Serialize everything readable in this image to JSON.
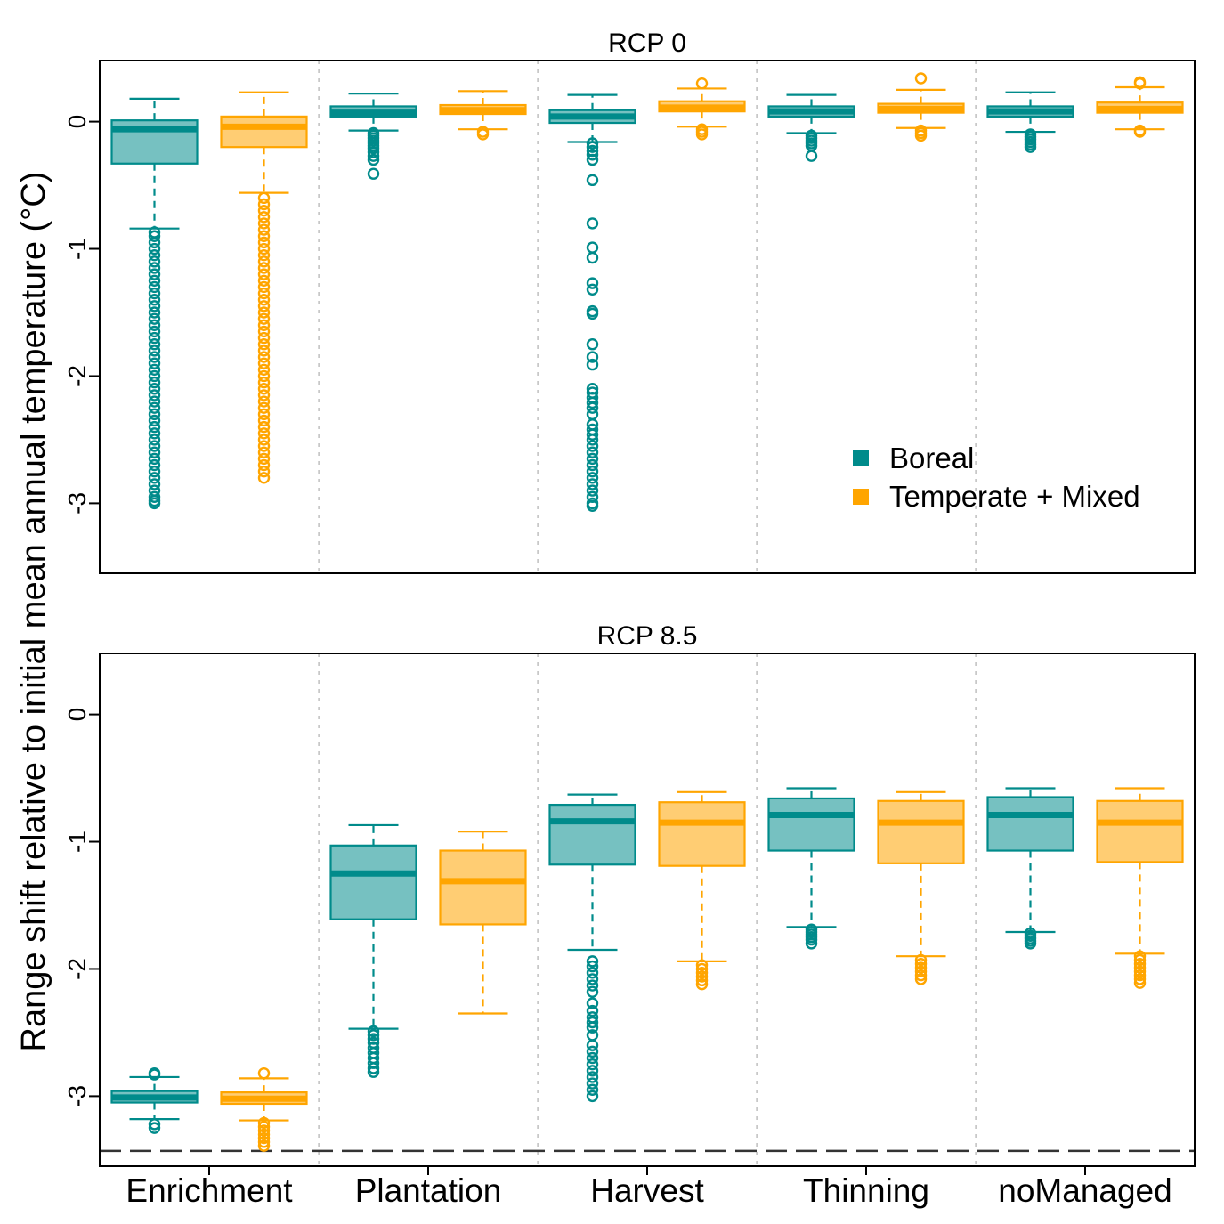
{
  "figure": {
    "ylabel": "Range shift relative to initial mean annual temperature (°C)",
    "categories": [
      "Enrichment",
      "Plantation",
      "Harvest",
      "Thinning",
      "noManaged"
    ],
    "legend": {
      "position": "bottom-right of top panel",
      "entries": [
        {
          "name": "Boreal",
          "color": "#008B8B",
          "fill": "#76C1C1"
        },
        {
          "name": "Temperate + Mixed",
          "color": "#FFA500",
          "fill": "#FFCD73"
        }
      ]
    }
  },
  "chart_data": [
    {
      "type": "box",
      "title": "RCP 0",
      "ylabel": "Range shift relative to initial mean annual temperature (°C)",
      "ylim": [
        -3.55,
        0.48
      ],
      "yticks": [
        "0",
        "-1",
        "-2",
        "-3"
      ],
      "tick_values": [
        0,
        -1,
        -2,
        -3
      ],
      "categories": [
        "Enrichment",
        "Plantation",
        "Harvest",
        "Thinning",
        "noManaged"
      ],
      "series": [
        {
          "name": "Boreal",
          "boxes": [
            {
              "whisker_low": -0.84,
              "q1": -0.33,
              "median": -0.06,
              "q3": 0.01,
              "whisker_high": 0.18,
              "outliers": [
                -0.87,
                -0.9,
                -0.95,
                -1.0,
                -1.05,
                -1.1,
                -1.15,
                -1.2,
                -1.25,
                -1.3,
                -1.35,
                -1.4,
                -1.45,
                -1.5,
                -1.55,
                -1.6,
                -1.65,
                -1.7,
                -1.75,
                -1.8,
                -1.85,
                -1.9,
                -1.95,
                -2.0,
                -2.05,
                -2.1,
                -2.15,
                -2.2,
                -2.25,
                -2.3,
                -2.35,
                -2.4,
                -2.45,
                -2.5,
                -2.55,
                -2.6,
                -2.65,
                -2.7,
                -2.75,
                -2.8,
                -2.85,
                -2.9,
                -2.95,
                -2.98,
                -3.0
              ]
            },
            {
              "whisker_low": -0.07,
              "q1": 0.04,
              "median": 0.07,
              "q3": 0.12,
              "whisker_high": 0.22,
              "outliers": [
                -0.09,
                -0.11,
                -0.13,
                -0.15,
                -0.17,
                -0.19,
                -0.21,
                -0.24,
                -0.27,
                -0.3,
                -0.41
              ]
            },
            {
              "whisker_low": -0.16,
              "q1": -0.01,
              "median": 0.04,
              "q3": 0.09,
              "whisker_high": 0.21,
              "outliers": [
                -0.17,
                -0.2,
                -0.23,
                -0.26,
                -0.3,
                -0.46,
                -0.8,
                -0.99,
                -1.07,
                -1.27,
                -1.32,
                -1.49,
                -1.51,
                -1.75,
                -1.85,
                -1.91,
                -2.1,
                -2.13,
                -2.17,
                -2.21,
                -2.25,
                -2.3,
                -2.38,
                -2.42,
                -2.46,
                -2.5,
                -2.55,
                -2.6,
                -2.65,
                -2.7,
                -2.75,
                -2.8,
                -2.85,
                -2.9,
                -2.95,
                -3.0,
                -3.02
              ]
            },
            {
              "whisker_low": -0.09,
              "q1": 0.04,
              "median": 0.08,
              "q3": 0.12,
              "whisker_high": 0.21,
              "outliers": [
                -0.11,
                -0.13,
                -0.15,
                -0.17,
                -0.19,
                -0.27
              ]
            },
            {
              "whisker_low": -0.08,
              "q1": 0.04,
              "median": 0.08,
              "q3": 0.12,
              "whisker_high": 0.23,
              "outliers": [
                -0.1,
                -0.12,
                -0.14,
                -0.16,
                -0.18,
                -0.2
              ]
            }
          ]
        },
        {
          "name": "Temperate + Mixed",
          "boxes": [
            {
              "whisker_low": -0.56,
              "q1": -0.2,
              "median": -0.04,
              "q3": 0.04,
              "whisker_high": 0.23,
              "outliers": [
                -0.6,
                -0.65,
                -0.7,
                -0.75,
                -0.8,
                -0.85,
                -0.9,
                -0.95,
                -1.0,
                -1.05,
                -1.1,
                -1.15,
                -1.2,
                -1.25,
                -1.3,
                -1.35,
                -1.4,
                -1.45,
                -1.5,
                -1.55,
                -1.6,
                -1.65,
                -1.7,
                -1.75,
                -1.8,
                -1.85,
                -1.9,
                -1.95,
                -2.0,
                -2.05,
                -2.1,
                -2.15,
                -2.2,
                -2.25,
                -2.3,
                -2.35,
                -2.4,
                -2.45,
                -2.5,
                -2.55,
                -2.6,
                -2.65,
                -2.7,
                -2.75,
                -2.8
              ]
            },
            {
              "whisker_low": -0.06,
              "q1": 0.06,
              "median": 0.09,
              "q3": 0.13,
              "whisker_high": 0.24,
              "outliers": [
                -0.08,
                -0.1
              ]
            },
            {
              "whisker_low": -0.04,
              "q1": 0.08,
              "median": 0.11,
              "q3": 0.16,
              "whisker_high": 0.26,
              "outliers": [
                0.3,
                -0.06,
                -0.08,
                -0.1
              ]
            },
            {
              "whisker_low": -0.05,
              "q1": 0.07,
              "median": 0.1,
              "q3": 0.14,
              "whisker_high": 0.25,
              "outliers": [
                0.34,
                -0.07,
                -0.09,
                -0.11
              ]
            },
            {
              "whisker_low": -0.06,
              "q1": 0.07,
              "median": 0.1,
              "q3": 0.15,
              "whisker_high": 0.27,
              "outliers": [
                0.3,
                0.31,
                -0.07,
                -0.08
              ]
            }
          ]
        }
      ]
    },
    {
      "type": "box",
      "title": "RCP 8.5",
      "ylabel": "Range shift relative to initial mean annual temperature (°C)",
      "ylim": [
        -3.55,
        0.48
      ],
      "yticks": [
        "0",
        "-1",
        "-2",
        "-3"
      ],
      "tick_values": [
        0,
        -1,
        -2,
        -3
      ],
      "reference_line": -3.43,
      "categories": [
        "Enrichment",
        "Plantation",
        "Harvest",
        "Thinning",
        "noManaged"
      ],
      "series": [
        {
          "name": "Boreal",
          "boxes": [
            {
              "whisker_low": -3.18,
              "q1": -3.05,
              "median": -3.01,
              "q3": -2.96,
              "whisker_high": -2.85,
              "outliers": [
                -2.82,
                -2.83,
                -3.22,
                -3.25
              ]
            },
            {
              "whisker_low": -2.47,
              "q1": -1.61,
              "median": -1.25,
              "q3": -1.03,
              "whisker_high": -0.87,
              "outliers": [
                -2.49,
                -2.52,
                -2.55,
                -2.58,
                -2.62,
                -2.66,
                -2.7,
                -2.74,
                -2.78,
                -2.81
              ]
            },
            {
              "whisker_low": -1.85,
              "q1": -1.18,
              "median": -0.84,
              "q3": -0.71,
              "whisker_high": -0.63,
              "outliers": [
                -1.94,
                -1.98,
                -2.03,
                -2.08,
                -2.13,
                -2.18,
                -2.27,
                -2.33,
                -2.38,
                -2.42,
                -2.46,
                -2.52,
                -2.6,
                -2.65,
                -2.7,
                -2.75,
                -2.8,
                -2.85,
                -2.9,
                -2.95,
                -3.0
              ]
            },
            {
              "whisker_low": -1.67,
              "q1": -1.07,
              "median": -0.79,
              "q3": -0.66,
              "whisker_high": -0.58,
              "outliers": [
                -1.69,
                -1.71,
                -1.73,
                -1.75,
                -1.77,
                -1.8
              ]
            },
            {
              "whisker_low": -1.71,
              "q1": -1.07,
              "median": -0.79,
              "q3": -0.65,
              "whisker_high": -0.58,
              "outliers": [
                -1.72,
                -1.74,
                -1.76,
                -1.78,
                -1.8
              ]
            }
          ]
        },
        {
          "name": "Temperate + Mixed",
          "boxes": [
            {
              "whisker_low": -3.19,
              "q1": -3.06,
              "median": -3.02,
              "q3": -2.97,
              "whisker_high": -2.86,
              "outliers": [
                -2.82,
                -3.21,
                -3.24,
                -3.27,
                -3.3,
                -3.33,
                -3.36,
                -3.39
              ]
            },
            {
              "whisker_low": -2.35,
              "q1": -1.65,
              "median": -1.31,
              "q3": -1.07,
              "whisker_high": -0.92,
              "outliers": []
            },
            {
              "whisker_low": -1.94,
              "q1": -1.19,
              "median": -0.85,
              "q3": -0.69,
              "whisker_high": -0.61,
              "outliers": [
                -1.97,
                -2.0,
                -2.03,
                -2.06,
                -2.09,
                -2.12
              ]
            },
            {
              "whisker_low": -1.9,
              "q1": -1.17,
              "median": -0.85,
              "q3": -0.68,
              "whisker_high": -0.61,
              "outliers": [
                -1.93,
                -1.96,
                -1.99,
                -2.02,
                -2.05,
                -2.08
              ]
            },
            {
              "whisker_low": -1.88,
              "q1": -1.16,
              "median": -0.85,
              "q3": -0.68,
              "whisker_high": -0.58,
              "outliers": [
                -1.9,
                -1.93,
                -1.96,
                -1.99,
                -2.02,
                -2.05,
                -2.08,
                -2.11
              ]
            }
          ]
        }
      ]
    }
  ]
}
